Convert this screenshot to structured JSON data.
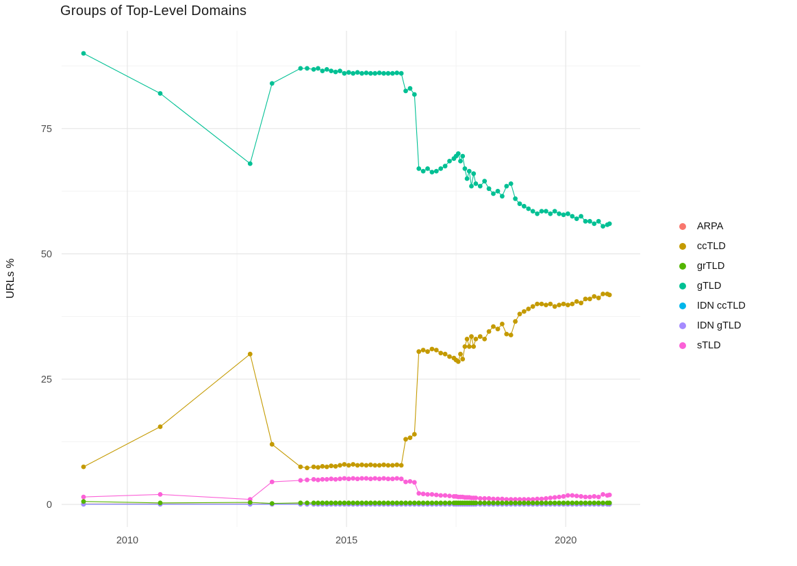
{
  "chart_data": {
    "type": "line",
    "title": "Groups of Top-Level Domains",
    "xlabel": "",
    "ylabel": "URLs %",
    "grid": true,
    "legend_position": "right",
    "xlim": [
      2008.5,
      2021.7
    ],
    "ylim": [
      -4.5,
      94.5
    ],
    "x_ticks": [
      2010,
      2015,
      2020
    ],
    "x_tick_labels": [
      "2010",
      "2015",
      "2020"
    ],
    "y_ticks": [
      0,
      25,
      50,
      75
    ],
    "y_tick_labels": [
      "0",
      "25",
      "50",
      "75"
    ],
    "x_minor_ticks": [
      2012.5,
      2017.5
    ],
    "y_minor_ticks": [
      12.5,
      37.5,
      62.5,
      87.5
    ],
    "x": [
      2009.0,
      2010.75,
      2012.8,
      2013.3,
      2013.95,
      2014.1,
      2014.25,
      2014.35,
      2014.45,
      2014.55,
      2014.65,
      2014.75,
      2014.85,
      2014.95,
      2015.05,
      2015.15,
      2015.25,
      2015.35,
      2015.45,
      2015.55,
      2015.65,
      2015.75,
      2015.85,
      2015.95,
      2016.05,
      2016.15,
      2016.25,
      2016.35,
      2016.45,
      2016.55,
      2016.65,
      2016.75,
      2016.85,
      2016.95,
      2017.05,
      2017.15,
      2017.25,
      2017.35,
      2017.45,
      2017.5,
      2017.55,
      2017.6,
      2017.65,
      2017.7,
      2017.75,
      2017.8,
      2017.85,
      2017.9,
      2017.95,
      2018.05,
      2018.15,
      2018.25,
      2018.35,
      2018.45,
      2018.55,
      2018.65,
      2018.75,
      2018.85,
      2018.95,
      2019.05,
      2019.15,
      2019.25,
      2019.35,
      2019.45,
      2019.55,
      2019.65,
      2019.75,
      2019.85,
      2019.95,
      2020.05,
      2020.15,
      2020.25,
      2020.35,
      2020.45,
      2020.55,
      2020.65,
      2020.75,
      2020.85,
      2020.95,
      2021.0
    ],
    "series": [
      {
        "name": "ARPA",
        "color": "#F8766D",
        "values": [
          0.1,
          0.1,
          0.1,
          0.1,
          0.1,
          0.1,
          0.1,
          0.1,
          0.1,
          0.1,
          0.1,
          0.1,
          0.1,
          0.1,
          0.1,
          0.1,
          0.1,
          0.1,
          0.1,
          0.1,
          0.1,
          0.1,
          0.1,
          0.1,
          0.1,
          0.1,
          0.1,
          0.1,
          0.1,
          0.1,
          0.1,
          0.1,
          0.1,
          0.1,
          0.1,
          0.1,
          0.1,
          0.1,
          0.1,
          0.1,
          0.1,
          0.1,
          0.1,
          0.1,
          0.1,
          0.1,
          0.1,
          0.1,
          0.1,
          0.1,
          0.1,
          0.1,
          0.1,
          0.1,
          0.1,
          0.1,
          0.1,
          0.1,
          0.1,
          0.1,
          0.1,
          0.1,
          0.1,
          0.1,
          0.1,
          0.1,
          0.1,
          0.1,
          0.1,
          0.1,
          0.1,
          0.1,
          0.1,
          0.1,
          0.1,
          0.1,
          0.1,
          0.1,
          0.1,
          0.1
        ]
      },
      {
        "name": "ccTLD",
        "color": "#C49A00",
        "values": [
          7.5,
          15.5,
          30,
          12,
          7.5,
          7.3,
          7.5,
          7.4,
          7.6,
          7.5,
          7.7,
          7.6,
          7.8,
          8,
          7.8,
          8,
          7.8,
          7.9,
          7.8,
          7.9,
          7.8,
          7.8,
          7.9,
          7.8,
          7.8,
          7.9,
          7.8,
          13,
          13.3,
          14,
          30.5,
          30.8,
          30.5,
          31,
          30.8,
          30.2,
          30,
          29.5,
          29.2,
          28.8,
          28.5,
          30,
          29,
          31.5,
          33,
          31.5,
          33.5,
          31.5,
          33,
          33.5,
          33,
          34.5,
          35.5,
          35,
          36,
          34,
          33.8,
          36.5,
          38,
          38.5,
          39,
          39.5,
          40,
          40,
          39.8,
          40,
          39.5,
          39.8,
          40,
          39.8,
          40,
          40.5,
          40.2,
          41,
          41,
          41.5,
          41.2,
          42,
          42,
          41.8
        ]
      },
      {
        "name": "grTLD",
        "color": "#53B400",
        "values": [
          0.6,
          0.3,
          0.4,
          0.2,
          0.3,
          0.3,
          0.3,
          0.3,
          0.3,
          0.3,
          0.3,
          0.3,
          0.3,
          0.3,
          0.3,
          0.3,
          0.3,
          0.3,
          0.3,
          0.3,
          0.3,
          0.3,
          0.3,
          0.3,
          0.3,
          0.3,
          0.3,
          0.3,
          0.3,
          0.3,
          0.3,
          0.3,
          0.3,
          0.3,
          0.3,
          0.3,
          0.3,
          0.3,
          0.3,
          0.3,
          0.3,
          0.3,
          0.3,
          0.3,
          0.3,
          0.3,
          0.3,
          0.3,
          0.3,
          0.3,
          0.3,
          0.3,
          0.3,
          0.3,
          0.3,
          0.3,
          0.3,
          0.3,
          0.3,
          0.3,
          0.3,
          0.3,
          0.3,
          0.3,
          0.3,
          0.3,
          0.3,
          0.3,
          0.3,
          0.3,
          0.3,
          0.3,
          0.3,
          0.3,
          0.3,
          0.3,
          0.3,
          0.3,
          0.3,
          0.3
        ]
      },
      {
        "name": "gTLD",
        "color": "#00C094",
        "values": [
          90,
          82,
          68,
          84,
          87,
          87,
          86.8,
          87,
          86.5,
          86.8,
          86.5,
          86.3,
          86.5,
          86,
          86.2,
          86,
          86.2,
          86,
          86.1,
          86,
          86,
          86.1,
          86,
          86,
          86,
          86.1,
          86,
          82.5,
          83,
          81.8,
          67,
          66.5,
          67,
          66.3,
          66.5,
          67,
          67.5,
          68.5,
          69,
          69.5,
          70,
          68.5,
          69.5,
          67,
          65,
          66.5,
          63.5,
          66,
          64,
          63.5,
          64.5,
          63,
          62,
          62.5,
          61.5,
          63.5,
          64,
          61,
          60,
          59.5,
          59,
          58.5,
          58,
          58.5,
          58.5,
          58,
          58.5,
          58,
          57.8,
          58,
          57.5,
          57,
          57.5,
          56.5,
          56.5,
          56,
          56.5,
          55.5,
          55.8,
          56
        ]
      },
      {
        "name": "IDN ccTLD",
        "color": "#00B6EB",
        "values": [
          0.05,
          0.05,
          0.05,
          0.05,
          0.05,
          0.05,
          0.05,
          0.05,
          0.05,
          0.05,
          0.05,
          0.05,
          0.05,
          0.05,
          0.05,
          0.05,
          0.05,
          0.05,
          0.05,
          0.05,
          0.05,
          0.05,
          0.05,
          0.05,
          0.05,
          0.05,
          0.05,
          0.05,
          0.05,
          0.05,
          0.05,
          0.05,
          0.05,
          0.05,
          0.05,
          0.05,
          0.05,
          0.05,
          0.05,
          0.05,
          0.05,
          0.05,
          0.05,
          0.05,
          0.05,
          0.05,
          0.05,
          0.05,
          0.05,
          0.05,
          0.05,
          0.05,
          0.05,
          0.05,
          0.05,
          0.05,
          0.05,
          0.05,
          0.05,
          0.05,
          0.05,
          0.05,
          0.05,
          0.05,
          0.05,
          0.05,
          0.05,
          0.05,
          0.05,
          0.05,
          0.05,
          0.05,
          0.05,
          0.05,
          0.05,
          0.05,
          0.05,
          0.05,
          0.05,
          0.05
        ]
      },
      {
        "name": "IDN gTLD",
        "color": "#A58AFF",
        "values": [
          0.02,
          0.02,
          0.02,
          0.02,
          0.02,
          0.02,
          0.02,
          0.02,
          0.02,
          0.02,
          0.02,
          0.02,
          0.02,
          0.02,
          0.02,
          0.02,
          0.02,
          0.02,
          0.02,
          0.02,
          0.02,
          0.02,
          0.02,
          0.02,
          0.02,
          0.02,
          0.02,
          0.02,
          0.02,
          0.02,
          0.02,
          0.02,
          0.02,
          0.02,
          0.02,
          0.02,
          0.02,
          0.02,
          0.02,
          0.02,
          0.02,
          0.02,
          0.02,
          0.02,
          0.02,
          0.02,
          0.02,
          0.02,
          0.02,
          0.02,
          0.02,
          0.02,
          0.02,
          0.02,
          0.02,
          0.02,
          0.02,
          0.02,
          0.02,
          0.02,
          0.02,
          0.02,
          0.02,
          0.02,
          0.02,
          0.02,
          0.02,
          0.02,
          0.02,
          0.02,
          0.02,
          0.02,
          0.02,
          0.02,
          0.02,
          0.02,
          0.02,
          0.02,
          0.02,
          0.02
        ]
      },
      {
        "name": "sTLD",
        "color": "#FB61D7",
        "values": [
          1.5,
          2,
          1,
          4.5,
          4.8,
          4.9,
          5,
          4.9,
          5,
          5,
          5.1,
          5,
          5.1,
          5.2,
          5.1,
          5.2,
          5.1,
          5.2,
          5.2,
          5.1,
          5.2,
          5.1,
          5.2,
          5.1,
          5.1,
          5.2,
          5.1,
          4.5,
          4.6,
          4.4,
          2.2,
          2.1,
          2,
          2,
          1.9,
          1.8,
          1.8,
          1.7,
          1.6,
          1.6,
          1.5,
          1.5,
          1.5,
          1.4,
          1.4,
          1.4,
          1.3,
          1.3,
          1.3,
          1.2,
          1.2,
          1.2,
          1.1,
          1.1,
          1.1,
          1,
          1,
          1,
          1,
          1,
          1,
          1,
          1.1,
          1.1,
          1.2,
          1.3,
          1.4,
          1.5,
          1.6,
          1.8,
          1.8,
          1.7,
          1.6,
          1.5,
          1.5,
          1.6,
          1.5,
          2,
          1.8,
          1.9
        ]
      }
    ],
    "draw_order": [
      "ARPA",
      "IDN ccTLD",
      "IDN gTLD",
      "gTLD",
      "ccTLD",
      "sTLD",
      "grTLD"
    ]
  }
}
